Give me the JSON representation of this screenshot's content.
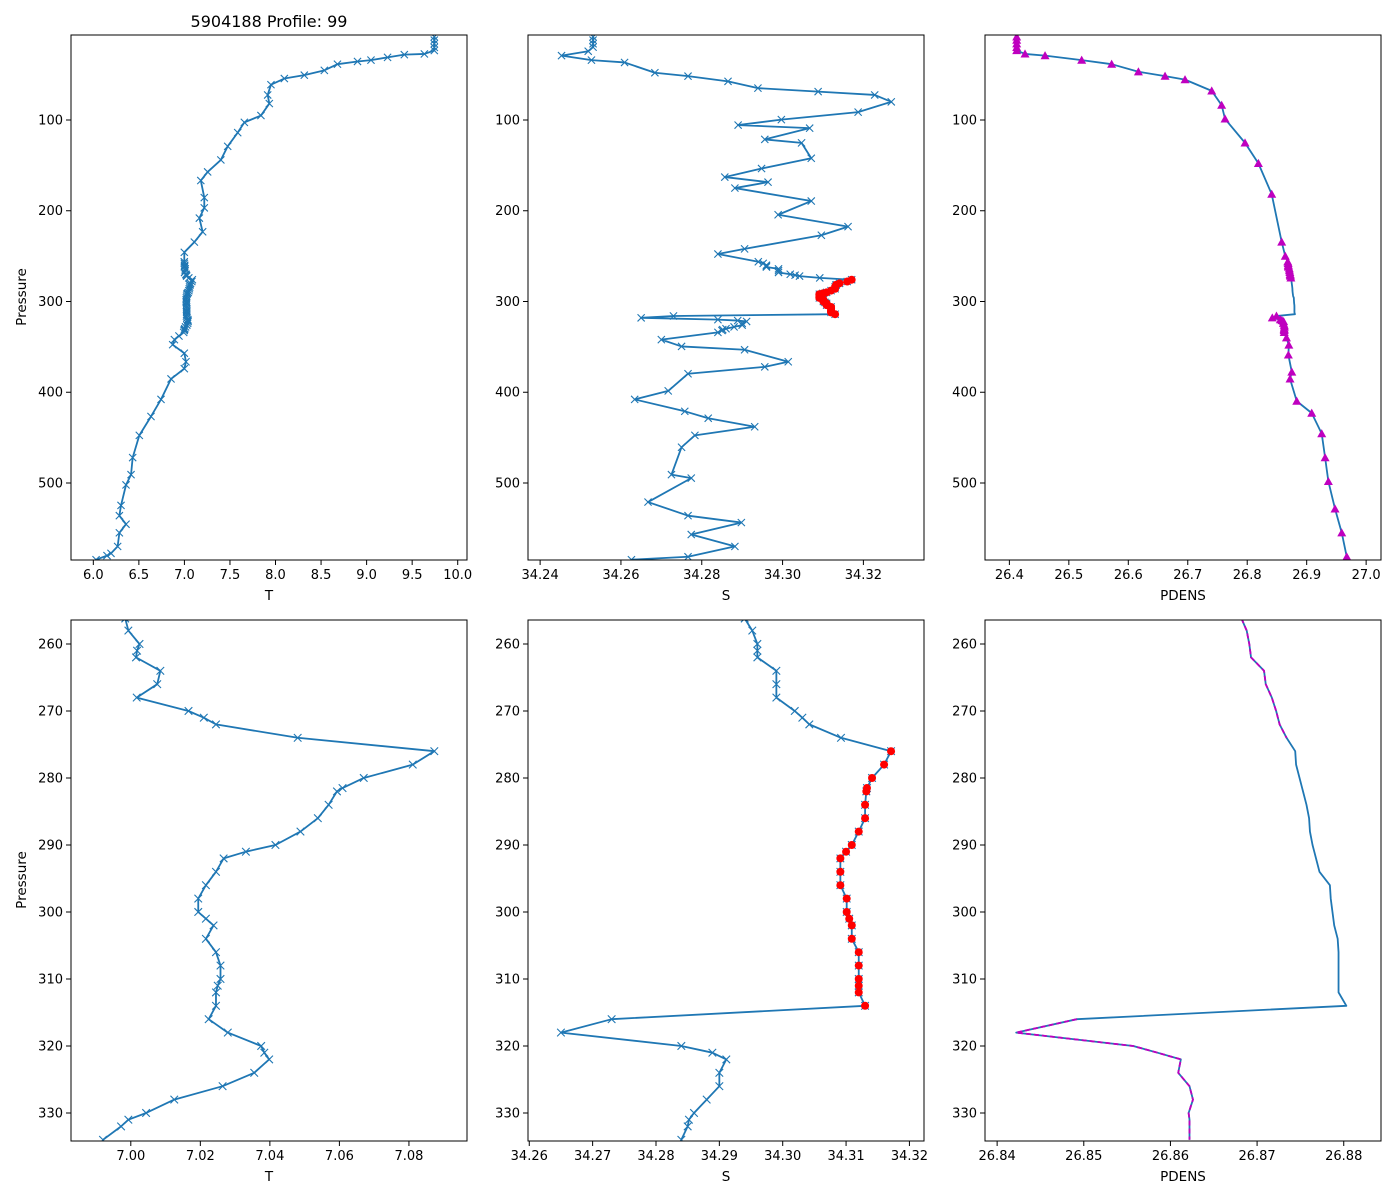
{
  "chart_data": {
    "type": "line",
    "title": "5904188 Profile: 99",
    "ylabel": "Pressure",
    "y_inverted": true,
    "grid": false,
    "legend": "none",
    "flagged_pressure_range": [
      276,
      314
    ],
    "colors": {
      "line": "#1f77b4",
      "flag": "#ff0000",
      "good_density": "#bf00bf"
    },
    "top_ylim": [
      584.85,
      6.34
    ],
    "top_yticks": [
      "100",
      "200",
      "300",
      "400",
      "500"
    ],
    "bottom_ylim": [
      334.18,
      256.42
    ],
    "bottom_yticks": [
      "260",
      "270",
      "280",
      "290",
      "300",
      "310",
      "320",
      "330"
    ],
    "window_pressure": [
      256.2,
      258,
      260,
      261,
      262,
      264,
      266,
      268,
      270,
      271,
      272,
      274,
      276,
      278,
      280,
      281.5,
      282,
      284,
      286,
      288,
      290,
      291,
      292,
      294,
      296,
      298,
      300,
      301,
      302,
      304,
      306,
      308,
      310,
      311,
      312,
      314,
      316,
      318,
      320,
      321,
      322,
      324,
      326,
      328,
      330,
      331,
      332,
      334
    ],
    "variables": [
      {
        "name": "T",
        "xlabel": "T",
        "marker": "x",
        "flag_marker": "none",
        "good_overlay_top": "none",
        "good_overlay_bottom": "none",
        "top_xlim": [
          5.755,
          10.102
        ],
        "top_xticks": [
          "6.0",
          "6.5",
          "7.0",
          "7.5",
          "8.0",
          "8.5",
          "9.0",
          "9.5",
          "10.0"
        ],
        "bottom_xlim": [
          6.9828,
          7.0967
        ],
        "bottom_xticks": [
          "7.00",
          "7.02",
          "7.04",
          "7.06",
          "7.08"
        ],
        "window_values": [
          6.9984,
          6.9993,
          7.0025,
          7.0018,
          7.0015,
          7.0085,
          7.0076,
          7.0017,
          7.0166,
          7.021,
          7.0245,
          7.048,
          7.0873,
          7.0811,
          7.067,
          7.0609,
          7.0593,
          7.0569,
          7.0538,
          7.0488,
          7.0416,
          7.0331,
          7.0267,
          7.0245,
          7.0216,
          7.0194,
          7.0194,
          7.0216,
          7.0238,
          7.0216,
          7.0245,
          7.0258,
          7.0258,
          7.025,
          7.0245,
          7.0245,
          7.0224,
          7.0279,
          7.0375,
          7.0384,
          7.0398,
          7.0355,
          7.0264,
          7.0125,
          7.0044,
          6.9993,
          6.9972,
          6.992
        ],
        "upper": {
          "pressure": [
            8.4,
            12,
            16,
            20,
            23.4,
            27.2,
            28,
            31,
            34,
            35.5,
            38.5,
            45.3,
            50.6,
            54.3,
            61.1,
            72.4,
            81.9,
            95.1,
            102.6,
            113.9,
            129,
            144,
            157.2,
            166.7,
            185.5,
            196.8,
            208.1,
            223.2,
            234.5,
            245.8
          ],
          "values": [
            9.743,
            9.743,
            9.743,
            9.743,
            9.743,
            9.634,
            9.414,
            9.23,
            9.048,
            8.9,
            8.68,
            8.536,
            8.316,
            8.097,
            7.95,
            7.914,
            7.932,
            7.84,
            7.658,
            7.585,
            7.475,
            7.4,
            7.255,
            7.18,
            7.218,
            7.218,
            7.164,
            7.2,
            7.109,
            6.999
          ]
        },
        "lower": {
          "pressure": [
            338,
            342,
            347.6,
            357,
            366.4,
            374,
            385.3,
            407.9,
            426.7,
            447.5,
            472,
            490.8,
            502.1,
            524.7,
            536,
            545.4,
            554.9,
            569.9,
            577.5,
            580,
            584.5
          ],
          "values": [
            6.94,
            6.89,
            6.871,
            6.999,
            7.017,
            6.999,
            6.853,
            6.743,
            6.633,
            6.505,
            6.432,
            6.414,
            6.359,
            6.304,
            6.286,
            6.359,
            6.286,
            6.267,
            6.194,
            6.15,
            6.03
          ]
        }
      },
      {
        "name": "S",
        "xlabel": "S",
        "marker": "x",
        "flag_marker": "o",
        "good_overlay_top": "none",
        "good_overlay_bottom": "none",
        "top_xlim": [
          34.237,
          34.335
        ],
        "top_xticks": [
          "34.24",
          "34.26",
          "34.28",
          "34.30",
          "34.32"
        ],
        "bottom_xlim": [
          34.2598,
          34.3223
        ],
        "bottom_xticks": [
          "34.26",
          "34.27",
          "34.28",
          "34.29",
          "34.30",
          "34.31",
          "34.32"
        ],
        "window_values": [
          34.294,
          34.2952,
          34.296,
          34.296,
          34.296,
          34.299,
          34.299,
          34.299,
          34.3019,
          34.3031,
          34.3042,
          34.3092,
          34.3171,
          34.316,
          34.3141,
          34.3133,
          34.3132,
          34.313,
          34.313,
          34.312,
          34.3109,
          34.31,
          34.3091,
          34.3091,
          34.3091,
          34.3101,
          34.3101,
          34.3105,
          34.3109,
          34.3109,
          34.312,
          34.312,
          34.312,
          34.312,
          34.312,
          34.313,
          34.273,
          34.265,
          34.284,
          34.2889,
          34.2911,
          34.29,
          34.29,
          34.288,
          34.286,
          34.2852,
          34.285,
          34.284
        ],
        "upper": {
          "pressure": [
            8.4,
            12,
            16,
            19.7,
            24.2,
            29.1,
            34,
            36.6,
            47.9,
            51.7,
            57.4,
            64.9,
            68.7,
            72.4,
            80,
            91.3,
            99.6,
            105.6,
            109,
            121.4,
            125.2,
            142.2,
            153.5,
            162.9,
            168.5,
            175,
            189.3,
            204.4,
            217.5,
            227,
            242,
            247.7
          ],
          "values": [
            34.2531,
            34.2531,
            34.2531,
            34.2531,
            34.2519,
            34.2453,
            34.2527,
            34.2609,
            34.2684,
            34.2766,
            34.2865,
            34.2939,
            34.3088,
            34.3228,
            34.3269,
            34.3187,
            34.2997,
            34.289,
            34.3067,
            34.2956,
            34.3047,
            34.3071,
            34.2948,
            34.2857,
            34.2964,
            34.2882,
            34.3071,
            34.2989,
            34.3162,
            34.3096,
            34.2906,
            34.284
          ]
        },
        "lower": {
          "pressure": [
            342,
            349.5,
            353.2,
            366.4,
            372,
            379.6,
            398.5,
            407.9,
            421,
            428.6,
            438,
            447.5,
            460.6,
            490.8,
            494.6,
            521,
            536,
            543.6,
            556.8,
            569.9,
            581.3,
            584.5
          ],
          "values": [
            34.27,
            34.275,
            34.2906,
            34.3014,
            34.2956,
            34.2766,
            34.2717,
            34.2634,
            34.2758,
            34.2816,
            34.2931,
            34.2783,
            34.275,
            34.2725,
            34.2774,
            34.2667,
            34.2766,
            34.2898,
            34.2774,
            34.2882,
            34.2766,
            34.2626
          ]
        }
      },
      {
        "name": "PDENS",
        "xlabel": "PDENS",
        "marker": "none",
        "flag_marker": "none",
        "good_overlay_top": "^",
        "good_overlay_bottom": "dashed",
        "top_xlim": [
          26.359,
          27.025
        ],
        "top_xticks": [
          "26.4",
          "26.5",
          "26.6",
          "26.7",
          "26.8",
          "26.9",
          "27.0"
        ],
        "bottom_xlim": [
          26.8386,
          26.8843
        ],
        "bottom_xticks": [
          "26.84",
          "26.85",
          "26.86",
          "26.87",
          "26.88"
        ],
        "window_values": [
          26.8682,
          26.8688,
          26.8691,
          26.8692,
          26.8693,
          26.8708,
          26.871,
          26.8717,
          26.8722,
          26.8724,
          26.8726,
          26.8734,
          26.8744,
          26.8745,
          26.8749,
          26.8752,
          26.8753,
          26.8757,
          26.876,
          26.8761,
          26.8764,
          26.8766,
          26.8768,
          26.8772,
          26.8784,
          26.8785,
          26.8787,
          26.8788,
          26.8789,
          26.8793,
          26.8794,
          26.8794,
          26.8794,
          26.8794,
          26.8794,
          26.8803,
          26.8492,
          26.8422,
          26.8557,
          26.8585,
          26.8612,
          26.8609,
          26.8622,
          26.8626,
          26.8621,
          26.8622,
          26.8622,
          26.8622
        ],
        "upper": {
          "pressure": [
            8.4,
            12,
            16,
            20,
            23.4,
            27.2,
            29.1,
            34,
            38.5,
            46.8,
            51.7,
            55.5,
            67.9,
            83.7,
            98.8,
            125.2,
            147.8,
            181.7,
            234.5,
            250
          ],
          "values": [
            26.4123,
            26.4123,
            26.4123,
            26.4123,
            26.4123,
            26.4263,
            26.46,
            26.5216,
            26.572,
            26.617,
            26.6618,
            26.6954,
            26.7403,
            26.757,
            26.7627,
            26.7963,
            26.8188,
            26.8412,
            26.858,
            26.864
          ]
        },
        "lower": {
          "pressure": [
            340,
            348,
            358.9,
            377.7,
            385.3,
            409.8,
            423,
            445.6,
            472,
            498.3,
            528.5,
            554.9,
            581.3,
            584.5
          ],
          "values": [
            26.866,
            26.87,
            26.8692,
            26.875,
            26.872,
            26.8833,
            26.9085,
            26.9253,
            26.931,
            26.9365,
            26.9477,
            26.959,
            26.9674,
            26.97
          ]
        }
      }
    ]
  }
}
